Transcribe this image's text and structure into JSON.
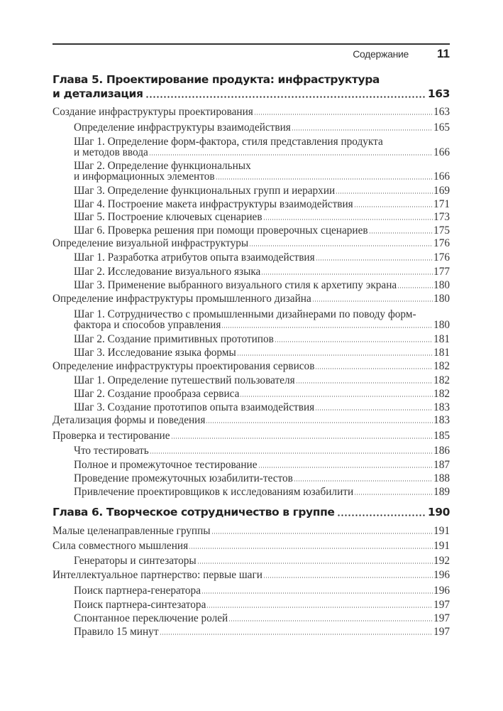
{
  "header": {
    "section": "Содержание",
    "page_number": "11"
  },
  "toc": [
    {
      "type": "chapter",
      "lines": [
        "Глава 5. Проектирование продукта: инфраструктура",
        "и детализация"
      ],
      "page": "163"
    },
    {
      "type": "entry",
      "level": 0,
      "lines": [
        "Создание инфраструктуры проектирования"
      ],
      "page": "163"
    },
    {
      "type": "entry",
      "level": 1,
      "lines": [
        "Определение инфраструктуры взаимодействия"
      ],
      "page": "165"
    },
    {
      "type": "entry",
      "level": 1,
      "lines": [
        "Шаг 1. Определение форм-фактора, стиля представления продукта",
        "и методов ввода"
      ],
      "page": "166"
    },
    {
      "type": "entry",
      "level": 1,
      "lines": [
        "Шаг 2. Определение функциональных",
        "и информационных элементов"
      ],
      "page": "166"
    },
    {
      "type": "entry",
      "level": 1,
      "lines": [
        "Шаг 3. Определение функциональных групп и иерархии"
      ],
      "page": "169"
    },
    {
      "type": "entry",
      "level": 1,
      "lines": [
        "Шаг 4. Построение макета инфраструктуры взаимодействия"
      ],
      "page": "171"
    },
    {
      "type": "entry",
      "level": 1,
      "lines": [
        "Шаг 5. Построение ключевых сценариев"
      ],
      "page": "173"
    },
    {
      "type": "entry",
      "level": 1,
      "lines": [
        "Шаг 6. Проверка решения при помощи проверочных сценариев"
      ],
      "page": "175"
    },
    {
      "type": "entry",
      "level": 0,
      "lines": [
        "Определение визуальной инфраструктуры"
      ],
      "page": "176"
    },
    {
      "type": "entry",
      "level": 1,
      "lines": [
        "Шаг 1. Разработка атрибутов опыта взаимодействия"
      ],
      "page": "176"
    },
    {
      "type": "entry",
      "level": 1,
      "lines": [
        "Шаг 2. Исследование визуального языка"
      ],
      "page": "177"
    },
    {
      "type": "entry",
      "level": 1,
      "lines": [
        "Шаг 3. Применение выбранного визуального стиля к архетипу экрана"
      ],
      "page": "180"
    },
    {
      "type": "entry",
      "level": 0,
      "lines": [
        "Определение инфраструктуры промышленного дизайна"
      ],
      "page": "180"
    },
    {
      "type": "entry",
      "level": 1,
      "lines": [
        "Шаг 1. Сотрудничество с промышленными дизайнерами по поводу форм-",
        "фактора и способов управления"
      ],
      "page": "180"
    },
    {
      "type": "entry",
      "level": 1,
      "lines": [
        "Шаг 2. Создание примитивных прототипов"
      ],
      "page": "181"
    },
    {
      "type": "entry",
      "level": 1,
      "lines": [
        "Шаг 3. Исследование языка формы"
      ],
      "page": "181"
    },
    {
      "type": "entry",
      "level": 0,
      "lines": [
        "Определение инфраструктуры проектирования сервисов"
      ],
      "page": "182"
    },
    {
      "type": "entry",
      "level": 1,
      "lines": [
        "Шаг 1. Определение путешествий пользователя"
      ],
      "page": "182"
    },
    {
      "type": "entry",
      "level": 1,
      "lines": [
        "Шаг 2. Создание прообраза сервиса"
      ],
      "page": "182"
    },
    {
      "type": "entry",
      "level": 1,
      "lines": [
        "Шаг 3. Создание прототипов опыта взаимодействия"
      ],
      "page": "183"
    },
    {
      "type": "entry",
      "level": 0,
      "lines": [
        "Детализация формы и поведения"
      ],
      "page": "183"
    },
    {
      "type": "entry",
      "level": 0,
      "lines": [
        "Проверка и тестирование"
      ],
      "page": "185"
    },
    {
      "type": "entry",
      "level": 1,
      "lines": [
        "Что тестировать"
      ],
      "page": "186"
    },
    {
      "type": "entry",
      "level": 1,
      "lines": [
        "Полное и промежуточное тестирование"
      ],
      "page": "187"
    },
    {
      "type": "entry",
      "level": 1,
      "lines": [
        "Проведение промежуточных юзабилити-тестов"
      ],
      "page": "188"
    },
    {
      "type": "entry",
      "level": 1,
      "lines": [
        "Привлечение проектировщиков к исследованиям юзабилити"
      ],
      "page": "189"
    },
    {
      "type": "chapter",
      "lines": [
        "Глава 6. Творческое сотрудничество в группе"
      ],
      "page": "190"
    },
    {
      "type": "entry",
      "level": 0,
      "lines": [
        "Малые целенаправленные группы"
      ],
      "page": "191"
    },
    {
      "type": "entry",
      "level": 0,
      "lines": [
        "Сила совместного мышления"
      ],
      "page": "191"
    },
    {
      "type": "entry",
      "level": 1,
      "lines": [
        "Генераторы и синтезаторы"
      ],
      "page": "192"
    },
    {
      "type": "entry",
      "level": 0,
      "lines": [
        "Интеллектуальное партнерство: первые шаги"
      ],
      "page": "196"
    },
    {
      "type": "entry",
      "level": 1,
      "lines": [
        "Поиск партнера-генератора"
      ],
      "page": "196"
    },
    {
      "type": "entry",
      "level": 1,
      "lines": [
        "Поиск партнера-синтезатора"
      ],
      "page": "197"
    },
    {
      "type": "entry",
      "level": 1,
      "lines": [
        "Спонтанное переключение ролей"
      ],
      "page": "197"
    },
    {
      "type": "entry",
      "level": 1,
      "lines": [
        "Правило 15 минут"
      ],
      "page": "197"
    }
  ]
}
